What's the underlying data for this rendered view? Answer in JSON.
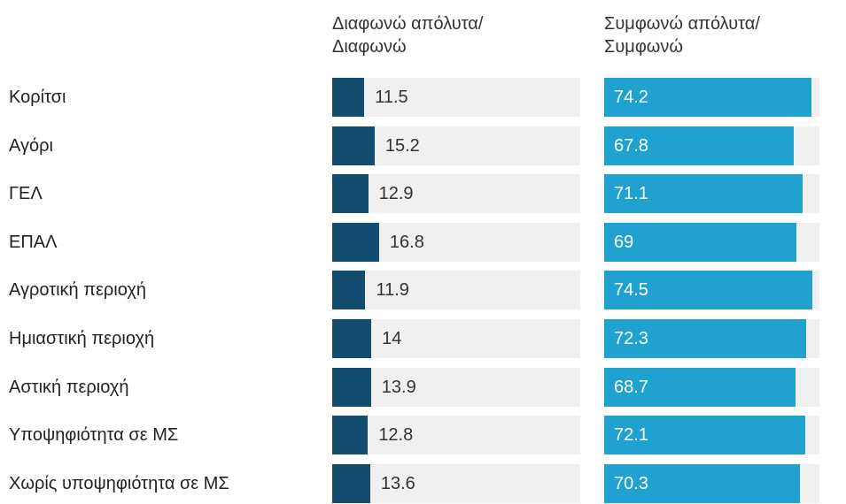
{
  "chart_data": {
    "type": "bar",
    "categories": [
      "Κορίτσι",
      "Αγόρι",
      "ΓΕΛ",
      "ΕΠΑΛ",
      "Αγροτική περιοχή",
      "Ημιαστική περιοχή",
      "Αστική περιοχή",
      "Υποψηφιότητα σε ΜΣ",
      "Χωρίς υποψηφιότητα σε ΜΣ"
    ],
    "series": [
      {
        "name": "Διαφωνώ απόλυτα/\nΔιαφωνώ",
        "color": "#124c6e",
        "values": [
          11.5,
          15.2,
          12.9,
          16.8,
          11.9,
          14,
          13.9,
          12.8,
          13.6
        ]
      },
      {
        "name": "Συμφωνώ απόλυτα/\nΣυμφωνώ",
        "color": "#1fa2cf",
        "values": [
          74.2,
          67.8,
          71.1,
          69,
          74.5,
          72.3,
          68.7,
          72.1,
          70.3
        ]
      }
    ]
  }
}
